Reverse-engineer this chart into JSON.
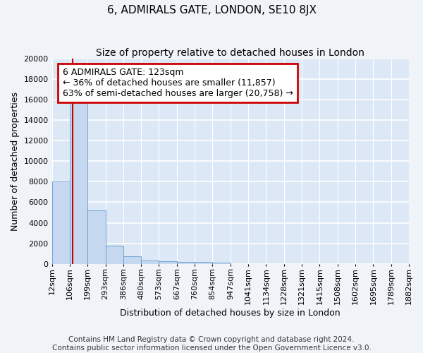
{
  "title": "6, ADMIRALS GATE, LONDON, SE10 8JX",
  "subtitle": "Size of property relative to detached houses in London",
  "xlabel": "Distribution of detached houses by size in London",
  "ylabel": "Number of detached properties",
  "bin_labels": [
    "12sqm",
    "106sqm",
    "199sqm",
    "293sqm",
    "386sqm",
    "480sqm",
    "573sqm",
    "667sqm",
    "760sqm",
    "854sqm",
    "947sqm",
    "1041sqm",
    "1134sqm",
    "1228sqm",
    "1321sqm",
    "1415sqm",
    "1508sqm",
    "1602sqm",
    "1695sqm",
    "1789sqm",
    "1882sqm"
  ],
  "bar_heights": [
    8050,
    16550,
    5200,
    1800,
    750,
    320,
    260,
    210,
    175,
    150,
    0,
    0,
    0,
    0,
    0,
    0,
    0,
    0,
    0,
    0
  ],
  "bar_color": "#c5d8f0",
  "bar_edge_color": "#6699cc",
  "red_line_x": 1.17,
  "ylim": [
    0,
    20000
  ],
  "yticks": [
    0,
    2000,
    4000,
    6000,
    8000,
    10000,
    12000,
    14000,
    16000,
    18000,
    20000
  ],
  "annotation_text": "6 ADMIRALS GATE: 123sqm\n← 36% of detached houses are smaller (11,857)\n63% of semi-detached houses are larger (20,758) →",
  "annotation_box_color": "#ffffff",
  "annotation_box_edge_color": "#cc0000",
  "footer_text": "Contains HM Land Registry data © Crown copyright and database right 2024.\nContains public sector information licensed under the Open Government Licence v3.0.",
  "background_color": "#dce8f5",
  "grid_color": "#ffffff",
  "fig_background": "#f0f4f8",
  "title_fontsize": 11,
  "subtitle_fontsize": 10,
  "axis_label_fontsize": 9,
  "tick_fontsize": 8,
  "annotation_fontsize": 9,
  "footer_fontsize": 7.5
}
